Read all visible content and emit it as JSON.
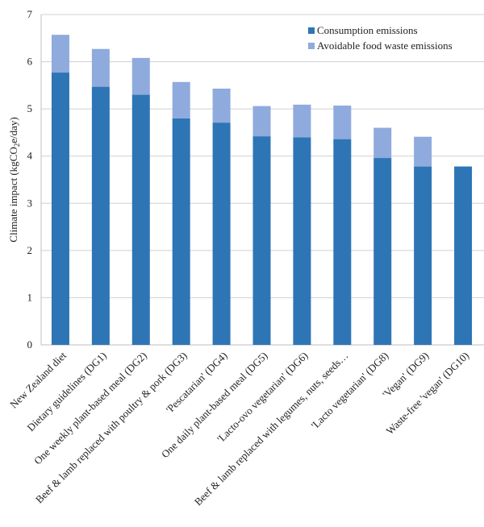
{
  "chart_data": {
    "type": "bar",
    "stacked": true,
    "title": "",
    "xlabel": "",
    "ylabel": "Climate impact (kgCO2e/day)",
    "ylabel_parts": {
      "pre": "Climate impact (kgCO",
      "sub": "2",
      "post": "e/day)"
    },
    "ylim": [
      0,
      7
    ],
    "yticks": [
      0,
      1,
      2,
      3,
      4,
      5,
      6,
      7
    ],
    "grid": true,
    "legend_position": "top-right",
    "categories": [
      "New Zealand diet",
      "Dietary guidelines (DG1)",
      "One weekly plant-based meal (DG2)",
      "Beef & lamb replaced with poultry & pork (DG3)",
      "'Pescatarian' (DG4)",
      "One daily plant-based meal (DG5)",
      "'Lacto-ovo vegetarian' (DG6)",
      "Beef & lamb replaced with legumes, nuts, seeds…",
      "'Lacto vegetarian' (DG8)",
      "'Vegan' (DG9)",
      "Waste-free 'vegan' (DG10)"
    ],
    "series": [
      {
        "name": "Consumption emissions",
        "color": "#2E75B6",
        "values": [
          5.77,
          5.47,
          5.3,
          4.8,
          4.71,
          4.42,
          4.4,
          4.36,
          3.96,
          3.78,
          3.78
        ]
      },
      {
        "name": "Avoidable food waste emissions",
        "color": "#8FAADC",
        "values": [
          0.8,
          0.8,
          0.78,
          0.77,
          0.72,
          0.64,
          0.69,
          0.71,
          0.64,
          0.63,
          0
        ]
      }
    ]
  }
}
